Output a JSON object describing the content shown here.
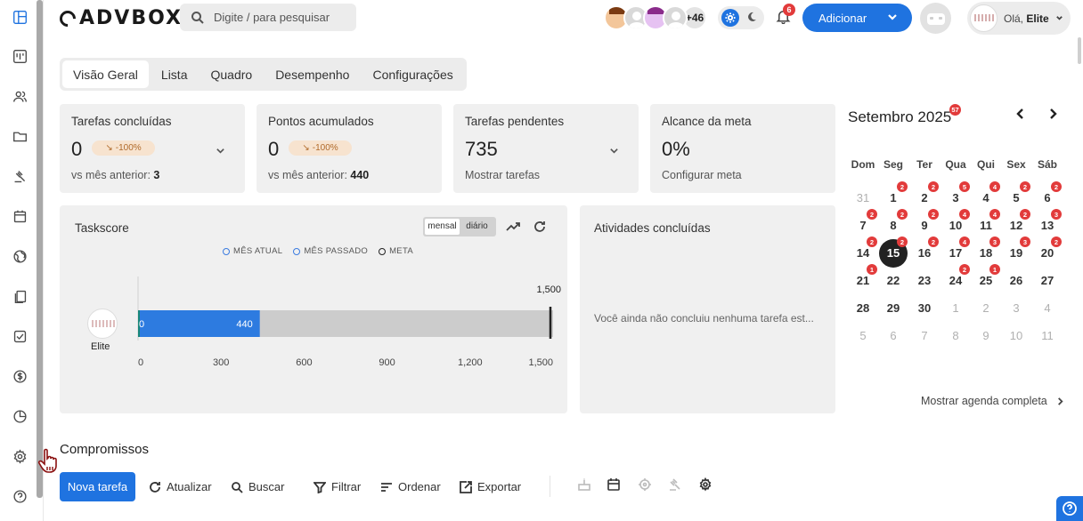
{
  "brand": {
    "name": "ADVBOX"
  },
  "search": {
    "placeholder": "Digite / para pesquisar"
  },
  "header": {
    "more_users": "+46",
    "notifications_count": "6",
    "add_button": "Adicionar",
    "greeting": "Olá,",
    "user_name": "Elite"
  },
  "tabs": [
    "Visão Geral",
    "Lista",
    "Quadro",
    "Desempenho",
    "Configurações"
  ],
  "stats": [
    {
      "title": "Tarefas concluídas",
      "value": "0",
      "delta": "-100%",
      "sub_label": "vs mês anterior:",
      "sub_value": "3"
    },
    {
      "title": "Pontos acumulados",
      "value": "0",
      "delta": "-100%",
      "sub_label": "vs mês anterior:",
      "sub_value": "440"
    },
    {
      "title": "Tarefas pendentes",
      "value": "735",
      "sub_label": "Mostrar tarefas"
    },
    {
      "title": "Alcance da meta",
      "value": "0%",
      "sub_label": "Configurar meta"
    }
  ],
  "taskscore": {
    "title": "Taskscore",
    "period_options": [
      "mensal",
      "diário"
    ],
    "period_selected": "mensal",
    "legend": [
      "MÊS ATUAL",
      "MÊS PASSADO",
      "META"
    ],
    "user_label": "Elite"
  },
  "chart_data": {
    "type": "bar",
    "orientation": "horizontal",
    "categories": [
      "Elite"
    ],
    "series": [
      {
        "name": "MÊS ATUAL",
        "values": [
          0
        ],
        "color": "#18877a"
      },
      {
        "name": "MÊS PASSADO",
        "values": [
          440
        ],
        "color": "#2d7be0"
      },
      {
        "name": "META",
        "values": [
          1500
        ],
        "color": "#222222"
      }
    ],
    "xticks": [
      0,
      300,
      600,
      900,
      1200,
      1500
    ],
    "xlim": [
      0,
      1500
    ],
    "data_labels": [
      "0",
      "440",
      "1,500"
    ],
    "tick_labels": [
      "0",
      "300",
      "600",
      "900",
      "1,200",
      "1,500"
    ],
    "background_track_color": "#cccccc",
    "legend_position": "top"
  },
  "activities": {
    "title": "Atividades concluídas",
    "empty_text": "Você ainda não concluiu nenhuma tarefa est..."
  },
  "calendar": {
    "title": "Setembro 2025",
    "badge": "57",
    "weekdays": [
      "Dom",
      "Seg",
      "Ter",
      "Qua",
      "Qui",
      "Sex",
      "Sáb"
    ],
    "weeks": [
      [
        {
          "d": "31",
          "m": true
        },
        {
          "d": "1",
          "b": "2"
        },
        {
          "d": "2",
          "b": "2"
        },
        {
          "d": "3",
          "b": "5"
        },
        {
          "d": "4",
          "b": "4"
        },
        {
          "d": "5",
          "b": "2"
        },
        {
          "d": "6",
          "b": "2"
        }
      ],
      [
        {
          "d": "7",
          "b": "2"
        },
        {
          "d": "8",
          "b": "2"
        },
        {
          "d": "9",
          "b": "2"
        },
        {
          "d": "10",
          "b": "4"
        },
        {
          "d": "11",
          "b": "4"
        },
        {
          "d": "12",
          "b": "2"
        },
        {
          "d": "13",
          "b": "3"
        }
      ],
      [
        {
          "d": "14",
          "b": "2"
        },
        {
          "d": "15",
          "b": "2",
          "today": true
        },
        {
          "d": "16",
          "b": "2"
        },
        {
          "d": "17",
          "b": "4"
        },
        {
          "d": "18",
          "b": "3"
        },
        {
          "d": "19",
          "b": "3"
        },
        {
          "d": "20",
          "b": "2"
        }
      ],
      [
        {
          "d": "21",
          "b": "1"
        },
        {
          "d": "22"
        },
        {
          "d": "23"
        },
        {
          "d": "24",
          "b": "2"
        },
        {
          "d": "25",
          "b": "1"
        },
        {
          "d": "26"
        },
        {
          "d": "27"
        }
      ],
      [
        {
          "d": "28"
        },
        {
          "d": "29"
        },
        {
          "d": "30"
        },
        {
          "d": "1",
          "m": true
        },
        {
          "d": "2",
          "m": true
        },
        {
          "d": "3",
          "m": true
        },
        {
          "d": "4",
          "m": true
        }
      ],
      [
        {
          "d": "5",
          "m": true
        },
        {
          "d": "6",
          "m": true
        },
        {
          "d": "7",
          "m": true
        },
        {
          "d": "8",
          "m": true
        },
        {
          "d": "9",
          "m": true
        },
        {
          "d": "10",
          "m": true
        },
        {
          "d": "11",
          "m": true
        }
      ]
    ],
    "show_full": "Mostrar agenda completa"
  },
  "compromissos": {
    "title": "Compromissos",
    "new_task": "Nova tarefa",
    "toolbar": [
      "Atualizar",
      "Buscar",
      "Filtrar",
      "Ordenar",
      "Exportar"
    ]
  },
  "colors": {
    "accent": "#1f73e0",
    "badge": "#e23b3b",
    "card_bg": "#f0f0f0"
  }
}
